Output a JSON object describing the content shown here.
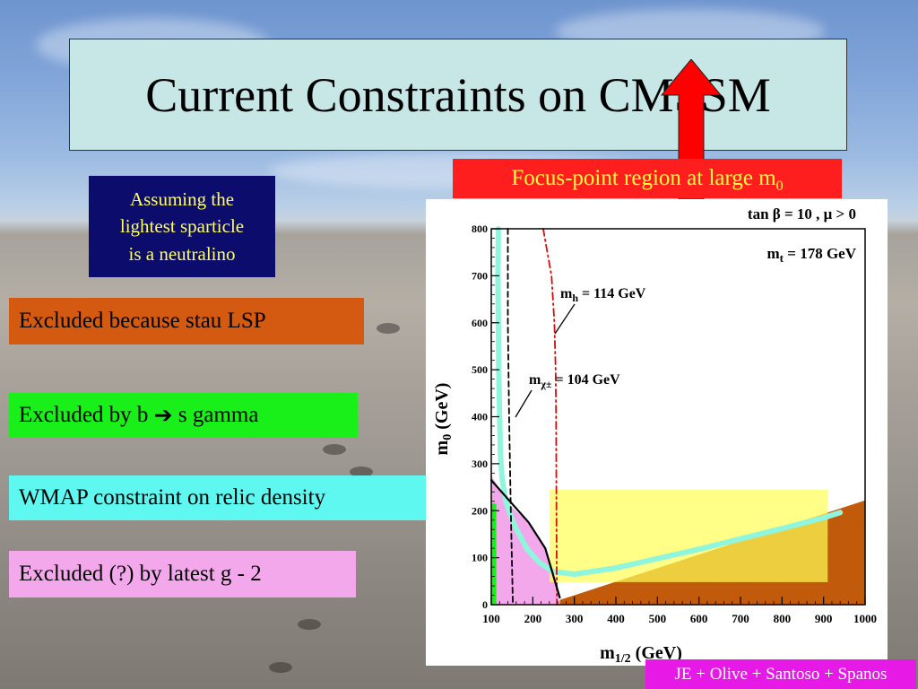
{
  "slide": {
    "title": "Current Constraints on CMSSM",
    "focus_label": "Focus-point region at large m",
    "focus_label_sub": "0",
    "assumption": [
      "Assuming the",
      "lightest sparticle",
      "is a neutralino"
    ],
    "legend": {
      "stau": "Excluded because stau LSP",
      "bsg_pre": "Excluded by b",
      "bsg_arrow": "➔",
      "bsg_post": " s gamma",
      "wmap": "WMAP constraint on relic density",
      "g2": "Excluded (?) by latest g - 2"
    },
    "credit": "JE + Olive + Santoso + Spanos",
    "colors": {
      "stau": "#d35a10",
      "bsg": "#19f019",
      "wmap": "#5ff8f0",
      "g2": "#f4a8ec",
      "focus": "#ff1e1e",
      "focus_text": "#ffff40",
      "assume_bg": "#0c0c6c",
      "assume_text": "#ffff60",
      "title_bg": "#c7e6e6",
      "credit_bg": "#e619e6",
      "arrow": "#ff0000",
      "yellow_overlay": "#ffff55"
    }
  },
  "chart_data": {
    "type": "area",
    "header": "tan β = 10 ,  μ > 0",
    "annotation_mt": "m_t = 178 GeV",
    "xlabel": "m_1/2 (GeV)",
    "ylabel": "m_0 (GeV)",
    "xlim": [
      100,
      1000
    ],
    "ylim": [
      0,
      800
    ],
    "xticks": [
      100,
      200,
      300,
      400,
      500,
      600,
      700,
      800,
      900,
      1000
    ],
    "yticks": [
      0,
      100,
      200,
      300,
      400,
      500,
      600,
      700,
      800
    ],
    "contour_labels": {
      "mh": "m_h  = 114 GeV",
      "mchi": "m_χ± = 104 GeV"
    },
    "regions": [
      {
        "name": "stau LSP excluded",
        "color": "#c15a0a",
        "polygon": [
          [
            265,
            0
          ],
          [
            1000,
            0
          ],
          [
            1000,
            222
          ],
          [
            265,
            10
          ]
        ]
      },
      {
        "name": "g-2 favoured",
        "color": "#f4a8ec",
        "polygon": [
          [
            100,
            0
          ],
          [
            265,
            0
          ],
          [
            255,
            50
          ],
          [
            230,
            120
          ],
          [
            190,
            175
          ],
          [
            140,
            215
          ],
          [
            100,
            275
          ]
        ]
      },
      {
        "name": "b to s gamma excluded",
        "color": "#19f019",
        "polygon": [
          [
            100,
            0
          ],
          [
            112,
            0
          ],
          [
            112,
            215
          ],
          [
            100,
            215
          ]
        ]
      },
      {
        "name": "yellow overlay",
        "color": "#ffff55",
        "opacity": 0.7,
        "polygon": [
          [
            240,
            48
          ],
          [
            910,
            48
          ],
          [
            910,
            245
          ],
          [
            240,
            245
          ]
        ]
      }
    ],
    "lines": [
      {
        "name": "WMAP strip",
        "color": "#8ff5dc",
        "width": 6,
        "points": [
          [
            117,
            800
          ],
          [
            116,
            700
          ],
          [
            117,
            600
          ],
          [
            118,
            500
          ],
          [
            120,
            400
          ],
          [
            122,
            320
          ],
          [
            126,
            270
          ],
          [
            135,
            220
          ],
          [
            155,
            170
          ],
          [
            185,
            120
          ],
          [
            215,
            90
          ],
          [
            250,
            70
          ],
          [
            300,
            65
          ],
          [
            400,
            78
          ],
          [
            500,
            98
          ],
          [
            600,
            118
          ],
          [
            700,
            140
          ],
          [
            800,
            162
          ],
          [
            900,
            185
          ],
          [
            940,
            196
          ]
        ]
      },
      {
        "name": "chargino mass 104 GeV",
        "color": "#000000",
        "dash": "6,4",
        "width": 1.8,
        "points": [
          [
            140,
            800
          ],
          [
            140,
            600
          ],
          [
            143,
            400
          ],
          [
            147,
            200
          ],
          [
            152,
            0
          ]
        ]
      },
      {
        "name": "Higgs mass 114 GeV",
        "color": "#d01010",
        "dash": "8,4,2,4",
        "width": 1.8,
        "points": [
          [
            225,
            800
          ],
          [
            245,
            700
          ],
          [
            252,
            600
          ],
          [
            255,
            500
          ],
          [
            256,
            400
          ],
          [
            257,
            200
          ],
          [
            258,
            0
          ]
        ]
      },
      {
        "name": "stau boundary",
        "color": "#000000",
        "width": 2.2,
        "points": [
          [
            100,
            265
          ],
          [
            140,
            225
          ],
          [
            190,
            175
          ],
          [
            230,
            120
          ],
          [
            255,
            45
          ],
          [
            265,
            15
          ]
        ]
      }
    ]
  }
}
